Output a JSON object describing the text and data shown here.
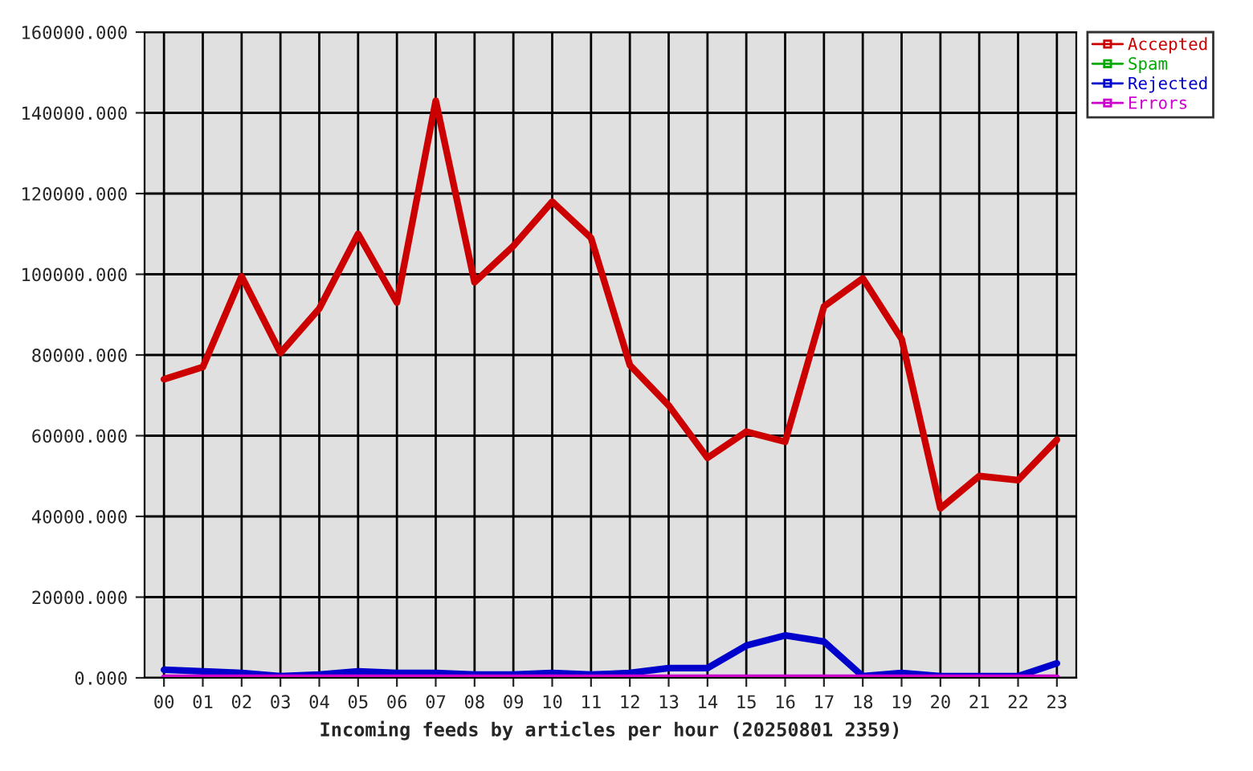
{
  "chart_data": {
    "type": "line",
    "xlabel": "Incoming feeds by articles per hour (20250801 2359)",
    "categories": [
      "00",
      "01",
      "02",
      "03",
      "04",
      "05",
      "06",
      "07",
      "08",
      "09",
      "10",
      "11",
      "12",
      "13",
      "14",
      "15",
      "16",
      "17",
      "18",
      "19",
      "20",
      "21",
      "22",
      "23"
    ],
    "series": [
      {
        "name": "Accepted",
        "color": "#cc0000",
        "values": [
          74000,
          77000,
          99500,
          80500,
          91500,
          110000,
          93000,
          143000,
          98000,
          107000,
          118000,
          109000,
          77500,
          67500,
          54500,
          61000,
          58500,
          92000,
          99000,
          84000,
          42000,
          50000,
          49000,
          59000
        ]
      },
      {
        "name": "Spam",
        "color": "#00aa00",
        "values": [
          null,
          null,
          null,
          null,
          null,
          null,
          null,
          null,
          null,
          null,
          null,
          null,
          null,
          null,
          null,
          null,
          null,
          null,
          null,
          null,
          null,
          null,
          null,
          null
        ]
      },
      {
        "name": "Rejected",
        "color": "#0000cc",
        "values": [
          2000,
          1600,
          1200,
          400,
          800,
          1600,
          1200,
          1200,
          800,
          800,
          1200,
          800,
          1200,
          2400,
          2400,
          8000,
          10500,
          9000,
          400,
          1200,
          400,
          400,
          400,
          3600
        ]
      },
      {
        "name": "Errors",
        "color": "#cc00cc",
        "values": [
          0,
          0,
          0,
          0,
          0,
          0,
          0,
          0,
          0,
          0,
          0,
          0,
          0,
          0,
          0,
          0,
          0,
          0,
          0,
          0,
          0,
          0,
          0,
          0
        ]
      }
    ],
    "ylim": [
      0,
      160000
    ],
    "yticks": [
      {
        "value": 0,
        "label": "0.000"
      },
      {
        "value": 20000,
        "label": "20000.000"
      },
      {
        "value": 40000,
        "label": "40000.000"
      },
      {
        "value": 60000,
        "label": "60000.000"
      },
      {
        "value": 80000,
        "label": "80000.000"
      },
      {
        "value": 100000,
        "label": "100000.000"
      },
      {
        "value": 120000,
        "label": "120000.000"
      },
      {
        "value": 140000,
        "label": "140000.000"
      },
      {
        "value": 160000,
        "label": "160000.000"
      }
    ],
    "grid": true,
    "legend": "top right",
    "marker": "none",
    "line_style": "solid"
  }
}
